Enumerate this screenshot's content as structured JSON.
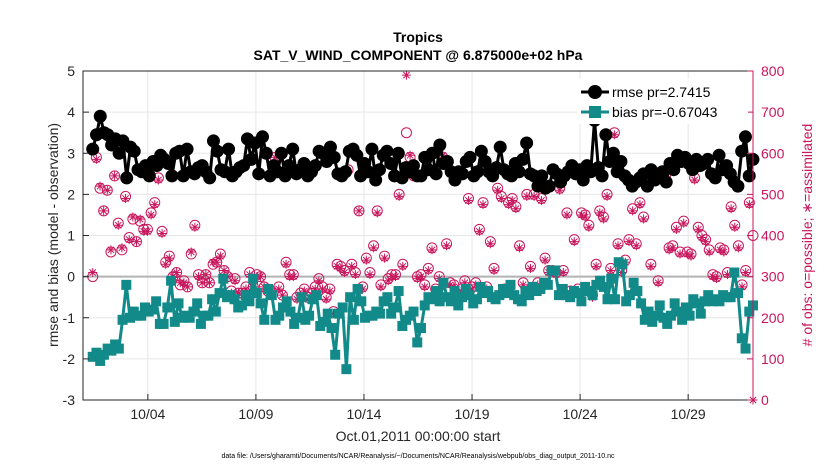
{
  "chart_data": {
    "type": "line",
    "title": "Tropics",
    "subtitle": "SAT_V_WIND_COMPONENT @ 6.875000e+02 hPa",
    "xlabel": "Oct.01,2011 00:00:00 start",
    "ylabel": "rmse and bias (model - observation)",
    "ylabel_right": "# of obs: o=possible; ∗=assimilated",
    "footnote": "data file: /Users/gharamti/Documents/NCAR/Reanalysis/~/Documents/NCAR/Reanalysis/webpub/obs_diag_output_2011-10.nc",
    "xlim": [
      1.0,
      32.0
    ],
    "ylim": [
      -3,
      5
    ],
    "ylim_right": [
      0,
      800
    ],
    "x_ticks": [
      4,
      9,
      14,
      19,
      24,
      29
    ],
    "x_tick_labels": [
      "10/04",
      "10/09",
      "10/14",
      "10/19",
      "10/24",
      "10/29"
    ],
    "y_ticks": [
      -3,
      -2,
      -1,
      0,
      1,
      2,
      3,
      4,
      5
    ],
    "y_tick_labels": [
      "-3",
      "-2",
      "-1",
      "0",
      "1",
      "2",
      "3",
      "4",
      "5"
    ],
    "y_right_ticks": [
      0,
      100,
      200,
      300,
      400,
      500,
      600,
      700,
      800
    ],
    "y_right_tick_labels": [
      "0",
      "100",
      "200",
      "300",
      "400",
      "500",
      "600",
      "700",
      "800"
    ],
    "zero_line": 0,
    "grid": true,
    "legend_position": "top-right",
    "series": [
      {
        "name": "rmse pr=2.7415",
        "marker": "circle",
        "color": "#000000",
        "values": [
          3.1,
          3.45,
          3.9,
          3.5,
          3.45,
          3.2,
          3.35,
          3.0,
          3.3,
          2.4,
          3.15,
          3.05,
          2.6,
          2.55,
          2.7,
          2.45,
          2.8,
          2.7,
          2.95,
          2.85,
          2.75,
          2.45,
          3.0,
          3.05,
          2.45,
          3.1,
          2.55,
          2.5,
          2.65,
          2.7,
          2.55,
          2.4,
          3.3,
          3.05,
          2.6,
          2.55,
          3.1,
          2.45,
          2.55,
          2.65,
          2.7,
          3.35,
          2.85,
          3.25,
          2.5,
          3.4,
          3.0,
          2.45,
          2.7,
          2.55,
          3.0,
          2.45,
          2.7,
          3.1,
          2.5,
          2.6,
          2.75,
          2.45,
          2.55,
          2.7,
          3.05,
          3.0,
          2.8,
          3.15,
          2.9,
          2.5,
          2.45,
          2.55,
          3.05,
          3.1,
          2.95,
          2.45,
          2.75,
          2.55,
          3.1,
          2.35,
          2.6,
          2.95,
          3.05,
          2.75,
          2.45,
          3.0,
          2.4,
          2.65,
          2.55,
          2.7,
          2.45,
          2.45,
          2.9,
          2.6,
          3.0,
          2.5,
          3.2,
          2.75,
          2.8,
          2.55,
          2.35,
          2.55,
          2.5,
          2.8,
          2.9,
          2.45,
          2.55,
          3.05,
          2.8,
          2.55,
          2.45,
          2.65,
          3.15,
          2.6,
          2.5,
          2.45,
          2.75,
          2.55,
          2.85,
          3.25,
          2.5,
          2.45,
          2.2,
          2.45,
          2.15,
          2.2,
          2.6,
          2.5,
          2.3,
          2.45,
          2.55,
          2.7,
          2.5,
          2.6,
          2.35,
          2.7,
          2.55,
          3.8,
          2.65,
          2.45,
          3.45,
          2.8,
          3.0,
          2.55,
          2.8,
          2.45,
          2.35,
          2.2,
          2.3,
          2.4,
          2.5,
          2.2,
          2.6,
          2.35,
          2.5,
          2.55,
          2.3,
          2.75,
          2.6,
          2.95,
          2.8,
          2.9,
          2.75,
          2.6,
          2.85,
          2.7,
          2.75,
          2.85,
          2.5,
          2.4,
          2.95,
          2.6,
          2.7,
          2.5,
          2.3,
          2.2,
          3.05,
          3.4,
          2.45,
          2.85
        ]
      },
      {
        "name": "bias pr=-0.67043",
        "marker": "square",
        "color": "#138a8a",
        "values": [
          -1.95,
          -1.85,
          -2.05,
          -1.9,
          -1.75,
          -1.8,
          -1.65,
          -1.75,
          -1.05,
          -0.2,
          -1.0,
          -0.85,
          -0.95,
          -0.95,
          -0.75,
          -0.85,
          -0.8,
          -0.6,
          -1.15,
          -1.15,
          -0.75,
          -0.1,
          -1.1,
          -0.65,
          -1.0,
          -0.95,
          -1.0,
          -0.85,
          -0.65,
          -1.15,
          -0.95,
          -0.95,
          -0.55,
          -0.85,
          -0.4,
          -0.05,
          -0.5,
          -0.45,
          -0.55,
          -0.75,
          -0.7,
          -0.45,
          -0.6,
          -0.05,
          -0.4,
          -0.65,
          -1.05,
          -0.3,
          -0.45,
          -1.05,
          -0.95,
          -0.75,
          -0.6,
          -0.85,
          -1.15,
          -1.0,
          -0.5,
          -1.05,
          -0.95,
          -0.55,
          -0.45,
          -1.2,
          -1.1,
          -0.9,
          -1.25,
          -1.9,
          -0.9,
          -0.75,
          -2.25,
          -0.5,
          -1.05,
          -0.3,
          -0.6,
          -1.0,
          -0.95,
          -0.95,
          -0.85,
          -0.9,
          -0.6,
          -0.5,
          -0.9,
          -0.75,
          -0.35,
          -1.2,
          -1.05,
          -0.95,
          -0.85,
          -1.6,
          -1.25,
          -0.7,
          -0.5,
          -0.55,
          -0.35,
          -0.6,
          -0.15,
          -0.5,
          -0.6,
          -0.35,
          -0.7,
          -0.5,
          -0.3,
          -0.45,
          -0.65,
          -0.55,
          -0.25,
          -0.4,
          -0.35,
          -0.5,
          -0.55,
          -0.45,
          -0.3,
          -0.4,
          -0.2,
          -0.45,
          -0.55,
          -0.6,
          -0.35,
          -0.45,
          -0.25,
          -0.35,
          -0.3,
          -0.15,
          -0.2,
          0.15,
          0.15,
          -0.45,
          -0.3,
          -0.45,
          -0.5,
          -0.35,
          -0.4,
          -0.6,
          -0.25,
          -0.35,
          -0.45,
          -0.2,
          -0.1,
          -0.25,
          -0.55,
          -0.05,
          -0.55,
          0.35,
          0.3,
          -0.6,
          -0.45,
          -0.15,
          -0.35,
          -0.65,
          -1.05,
          -0.85,
          -1.1,
          -0.95,
          -0.7,
          -1.0,
          -1.15,
          -0.95,
          -0.65,
          -0.85,
          -1.05,
          -0.75,
          -0.95,
          -0.55,
          -0.65,
          -0.9,
          -0.6,
          -0.45,
          -0.6,
          -0.55,
          -0.6,
          -0.45,
          -0.5,
          -0.5,
          0.1,
          -0.4,
          -1.5,
          -1.75,
          -0.85,
          -0.7
        ]
      },
      {
        "name": "obs possible",
        "marker": "open-circle",
        "color": "#c8175d",
        "axis": "right",
        "values": [
          300,
          590,
          515,
          460,
          510,
          360,
          545,
          430,
          365,
          495,
          395,
          440,
          385,
          435,
          415,
          415,
          455,
          480,
          540,
          410,
          335,
          350,
          300,
          310,
          280,
          290,
          275,
          355,
          425,
          305,
          285,
          305,
          285,
          330,
          335,
          355,
          315,
          300,
          265,
          295,
          260,
          260,
          275,
          310,
          275,
          305,
          300,
          275,
          265,
          265,
          590,
          275,
          255,
          335,
          305,
          305,
          250,
          260,
          270,
          250,
          260,
          275,
          295,
          275,
          250,
          270,
          215,
          330,
          325,
          315,
          560,
          330,
          310,
          460,
          275,
          345,
          310,
          375,
          460,
          280,
          350,
          295,
          305,
          305,
          500,
          330,
          650,
          590,
          545,
          300,
          305,
          280,
          320,
          370,
          270,
          300,
          590,
          380,
          285,
          280,
          255,
          270,
          290,
          490,
          275,
          285,
          415,
          480,
          275,
          385,
          320,
          515,
          495,
          270,
          480,
          490,
          470,
          375,
          285,
          500,
          325,
          500,
          285,
          490,
          345,
          315,
          315,
          310,
          515,
          315,
          455,
          265,
          390,
          270,
          455,
          450,
          425,
          255,
          330,
          460,
          445,
          500,
          320,
          650,
          380,
          315,
          340,
          390,
          465,
          380,
          480,
          445,
          530,
          330,
          545,
          290,
          555,
          545,
          370,
          375,
          420,
          360,
          435,
          360,
          355,
          540,
          420,
          400,
          390,
          365,
          305,
          300,
          370,
          365,
          310,
          470,
          425,
          375,
          280,
          315,
          480,
          400
        ]
      },
      {
        "name": "obs assimilated",
        "marker": "star",
        "color": "#c8175d",
        "axis": "right",
        "values": [
          310,
          585,
          520,
          460,
          510,
          365,
          545,
          425,
          370,
          490,
          390,
          445,
          385,
          440,
          410,
          410,
          450,
          475,
          535,
          405,
          330,
          345,
          300,
          310,
          285,
          285,
          275,
          360,
          420,
          300,
          285,
          305,
          285,
          335,
          335,
          350,
          315,
          300,
          260,
          290,
          260,
          260,
          270,
          305,
          275,
          300,
          300,
          275,
          265,
          265,
          590,
          270,
          255,
          330,
          300,
          300,
          245,
          255,
          265,
          245,
          255,
          270,
          290,
          270,
          245,
          265,
          210,
          325,
          320,
          310,
          555,
          325,
          305,
          460,
          270,
          340,
          305,
          370,
          455,
          275,
          345,
          290,
          300,
          300,
          495,
          325,
          790,
          595,
          545,
          295,
          300,
          275,
          315,
          365,
          265,
          295,
          595,
          375,
          280,
          275,
          250,
          265,
          285,
          485,
          270,
          280,
          410,
          475,
          270,
          380,
          315,
          510,
          490,
          265,
          475,
          485,
          465,
          370,
          280,
          495,
          320,
          495,
          280,
          485,
          340,
          310,
          310,
          305,
          510,
          310,
          450,
          260,
          385,
          265,
          450,
          445,
          420,
          250,
          325,
          455,
          440,
          495,
          315,
          645,
          375,
          310,
          335,
          385,
          460,
          375,
          475,
          440,
          525,
          325,
          540,
          285,
          550,
          540,
          365,
          370,
          415,
          355,
          430,
          355,
          350,
          535,
          415,
          395,
          385,
          360,
          300,
          295,
          365,
          360,
          305,
          465,
          420,
          370,
          275,
          310,
          475,
          0
        ]
      }
    ]
  }
}
